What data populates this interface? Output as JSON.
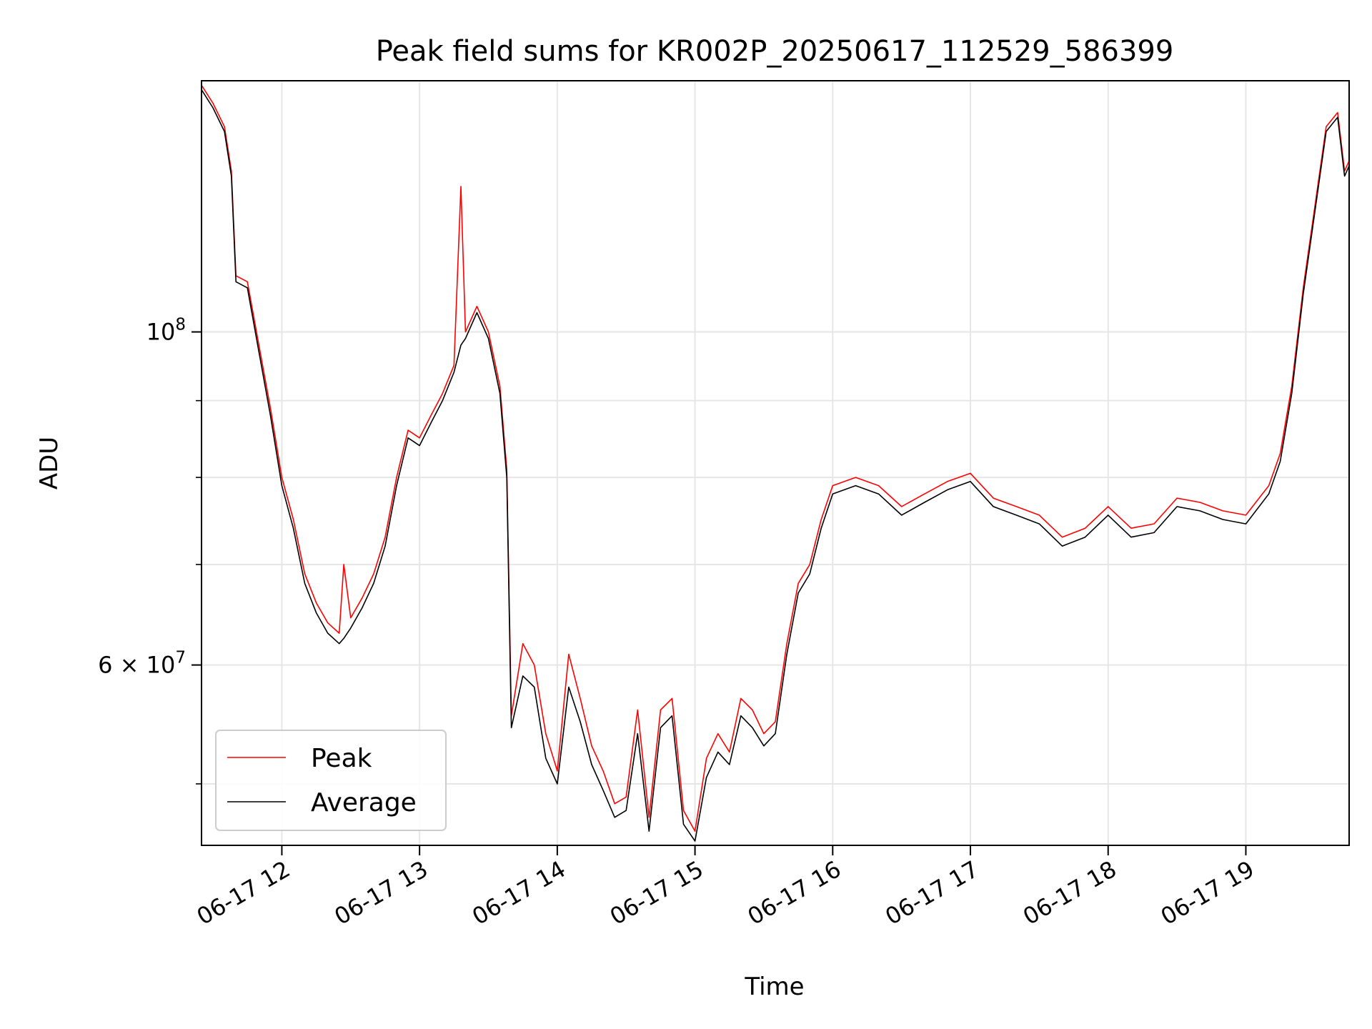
{
  "chart_data": {
    "type": "line",
    "title": "Peak field sums for KR002P_20250617_112529_586399",
    "xlabel": "Time",
    "ylabel": "ADU",
    "y_scale": "log",
    "grid": true,
    "legend_position": "lower-left",
    "xlim": [
      "2025-06-17 11:25",
      "2025-06-17 19:45"
    ],
    "ylim": [
      45500000,
      147000000
    ],
    "x_ticks": [
      {
        "value": "2025-06-17 12:00",
        "label": "06-17 12"
      },
      {
        "value": "2025-06-17 13:00",
        "label": "06-17 13"
      },
      {
        "value": "2025-06-17 14:00",
        "label": "06-17 14"
      },
      {
        "value": "2025-06-17 15:00",
        "label": "06-17 15"
      },
      {
        "value": "2025-06-17 16:00",
        "label": "06-17 16"
      },
      {
        "value": "2025-06-17 17:00",
        "label": "06-17 17"
      },
      {
        "value": "2025-06-17 18:00",
        "label": "06-17 18"
      },
      {
        "value": "2025-06-17 19:00",
        "label": "06-17 19"
      }
    ],
    "y_major_ticks": [
      {
        "value": 100000000,
        "base": "10",
        "exp": "8",
        "coef": ""
      },
      {
        "value": 60000000,
        "base": "10",
        "exp": "7",
        "coef": "6 × "
      }
    ],
    "y_minor_ticks": [
      50000000,
      70000000,
      80000000,
      90000000
    ],
    "series": [
      {
        "name": "Peak",
        "color": "#ff0000",
        "points": [
          [
            "2025-06-17 11:25",
            146000000
          ],
          [
            "2025-06-17 11:30",
            142000000
          ],
          [
            "2025-06-17 11:35",
            137000000
          ],
          [
            "2025-06-17 11:38",
            128000000
          ],
          [
            "2025-06-17 11:40",
            109000000
          ],
          [
            "2025-06-17 11:45",
            108000000
          ],
          [
            "2025-06-17 11:50",
            98000000
          ],
          [
            "2025-06-17 11:55",
            89000000
          ],
          [
            "2025-06-17 12:00",
            80000000
          ],
          [
            "2025-06-17 12:05",
            75000000
          ],
          [
            "2025-06-17 12:10",
            69000000
          ],
          [
            "2025-06-17 12:15",
            66000000
          ],
          [
            "2025-06-17 12:20",
            64000000
          ],
          [
            "2025-06-17 12:25",
            63000000
          ],
          [
            "2025-06-17 12:27",
            70000000
          ],
          [
            "2025-06-17 12:30",
            64500000
          ],
          [
            "2025-06-17 12:35",
            66500000
          ],
          [
            "2025-06-17 12:40",
            69000000
          ],
          [
            "2025-06-17 12:45",
            73000000
          ],
          [
            "2025-06-17 12:50",
            80000000
          ],
          [
            "2025-06-17 12:55",
            86000000
          ],
          [
            "2025-06-17 13:00",
            85000000
          ],
          [
            "2025-06-17 13:05",
            88000000
          ],
          [
            "2025-06-17 13:10",
            91000000
          ],
          [
            "2025-06-17 13:15",
            95000000
          ],
          [
            "2025-06-17 13:18",
            125000000
          ],
          [
            "2025-06-17 13:20",
            100000000
          ],
          [
            "2025-06-17 13:25",
            104000000
          ],
          [
            "2025-06-17 13:30",
            100000000
          ],
          [
            "2025-06-17 13:35",
            92000000
          ],
          [
            "2025-06-17 13:38",
            81000000
          ],
          [
            "2025-06-17 13:40",
            55500000
          ],
          [
            "2025-06-17 13:45",
            62000000
          ],
          [
            "2025-06-17 13:50",
            60000000
          ],
          [
            "2025-06-17 13:55",
            54000000
          ],
          [
            "2025-06-17 14:00",
            51000000
          ],
          [
            "2025-06-17 14:05",
            61000000
          ],
          [
            "2025-06-17 14:10",
            57000000
          ],
          [
            "2025-06-17 14:15",
            53000000
          ],
          [
            "2025-06-17 14:20",
            51000000
          ],
          [
            "2025-06-17 14:25",
            48500000
          ],
          [
            "2025-06-17 14:30",
            49000000
          ],
          [
            "2025-06-17 14:35",
            56000000
          ],
          [
            "2025-06-17 14:40",
            47500000
          ],
          [
            "2025-06-17 14:45",
            56000000
          ],
          [
            "2025-06-17 14:50",
            57000000
          ],
          [
            "2025-06-17 14:55",
            48000000
          ],
          [
            "2025-06-17 15:00",
            46500000
          ],
          [
            "2025-06-17 15:05",
            52000000
          ],
          [
            "2025-06-17 15:10",
            54000000
          ],
          [
            "2025-06-17 15:15",
            52500000
          ],
          [
            "2025-06-17 15:20",
            57000000
          ],
          [
            "2025-06-17 15:25",
            56000000
          ],
          [
            "2025-06-17 15:30",
            54000000
          ],
          [
            "2025-06-17 15:35",
            55000000
          ],
          [
            "2025-06-17 15:40",
            62000000
          ],
          [
            "2025-06-17 15:45",
            68000000
          ],
          [
            "2025-06-17 15:50",
            70000000
          ],
          [
            "2025-06-17 15:55",
            75000000
          ],
          [
            "2025-06-17 16:00",
            79000000
          ],
          [
            "2025-06-17 16:10",
            80000000
          ],
          [
            "2025-06-17 16:20",
            79000000
          ],
          [
            "2025-06-17 16:30",
            76500000
          ],
          [
            "2025-06-17 16:40",
            78000000
          ],
          [
            "2025-06-17 16:50",
            79500000
          ],
          [
            "2025-06-17 17:00",
            80500000
          ],
          [
            "2025-06-17 17:10",
            77500000
          ],
          [
            "2025-06-17 17:20",
            76500000
          ],
          [
            "2025-06-17 17:30",
            75500000
          ],
          [
            "2025-06-17 17:40",
            73000000
          ],
          [
            "2025-06-17 17:50",
            74000000
          ],
          [
            "2025-06-17 18:00",
            76500000
          ],
          [
            "2025-06-17 18:10",
            74000000
          ],
          [
            "2025-06-17 18:20",
            74500000
          ],
          [
            "2025-06-17 18:30",
            77500000
          ],
          [
            "2025-06-17 18:40",
            77000000
          ],
          [
            "2025-06-17 18:50",
            76000000
          ],
          [
            "2025-06-17 19:00",
            75500000
          ],
          [
            "2025-06-17 19:10",
            79000000
          ],
          [
            "2025-06-17 19:15",
            83000000
          ],
          [
            "2025-06-17 19:20",
            92000000
          ],
          [
            "2025-06-17 19:25",
            107000000
          ],
          [
            "2025-06-17 19:30",
            121000000
          ],
          [
            "2025-06-17 19:35",
            137000000
          ],
          [
            "2025-06-17 19:40",
            140000000
          ],
          [
            "2025-06-17 19:43",
            128000000
          ],
          [
            "2025-06-17 19:45",
            130000000
          ]
        ]
      },
      {
        "name": "Average",
        "color": "#000000",
        "points": [
          [
            "2025-06-17 11:25",
            145000000
          ],
          [
            "2025-06-17 11:30",
            141000000
          ],
          [
            "2025-06-17 11:35",
            136000000
          ],
          [
            "2025-06-17 11:38",
            127000000
          ],
          [
            "2025-06-17 11:40",
            108000000
          ],
          [
            "2025-06-17 11:45",
            107000000
          ],
          [
            "2025-06-17 11:50",
            97000000
          ],
          [
            "2025-06-17 11:55",
            88000000
          ],
          [
            "2025-06-17 12:00",
            79000000
          ],
          [
            "2025-06-17 12:05",
            74000000
          ],
          [
            "2025-06-17 12:10",
            68000000
          ],
          [
            "2025-06-17 12:15",
            65000000
          ],
          [
            "2025-06-17 12:20",
            63000000
          ],
          [
            "2025-06-17 12:25",
            62000000
          ],
          [
            "2025-06-17 12:27",
            62500000
          ],
          [
            "2025-06-17 12:30",
            63500000
          ],
          [
            "2025-06-17 12:35",
            65500000
          ],
          [
            "2025-06-17 12:40",
            68000000
          ],
          [
            "2025-06-17 12:45",
            72000000
          ],
          [
            "2025-06-17 12:50",
            79000000
          ],
          [
            "2025-06-17 12:55",
            85000000
          ],
          [
            "2025-06-17 13:00",
            84000000
          ],
          [
            "2025-06-17 13:05",
            87000000
          ],
          [
            "2025-06-17 13:10",
            90000000
          ],
          [
            "2025-06-17 13:15",
            94000000
          ],
          [
            "2025-06-17 13:18",
            98000000
          ],
          [
            "2025-06-17 13:20",
            99000000
          ],
          [
            "2025-06-17 13:25",
            103000000
          ],
          [
            "2025-06-17 13:30",
            99000000
          ],
          [
            "2025-06-17 13:35",
            91000000
          ],
          [
            "2025-06-17 13:38",
            80000000
          ],
          [
            "2025-06-17 13:40",
            54500000
          ],
          [
            "2025-06-17 13:45",
            59000000
          ],
          [
            "2025-06-17 13:50",
            58000000
          ],
          [
            "2025-06-17 13:55",
            52000000
          ],
          [
            "2025-06-17 14:00",
            50000000
          ],
          [
            "2025-06-17 14:05",
            58000000
          ],
          [
            "2025-06-17 14:10",
            55000000
          ],
          [
            "2025-06-17 14:15",
            51500000
          ],
          [
            "2025-06-17 14:20",
            49500000
          ],
          [
            "2025-06-17 14:25",
            47500000
          ],
          [
            "2025-06-17 14:30",
            48000000
          ],
          [
            "2025-06-17 14:35",
            54000000
          ],
          [
            "2025-06-17 14:40",
            46500000
          ],
          [
            "2025-06-17 14:45",
            54500000
          ],
          [
            "2025-06-17 14:50",
            55500000
          ],
          [
            "2025-06-17 14:55",
            47000000
          ],
          [
            "2025-06-17 15:00",
            45800000
          ],
          [
            "2025-06-17 15:05",
            50500000
          ],
          [
            "2025-06-17 15:10",
            52500000
          ],
          [
            "2025-06-17 15:15",
            51500000
          ],
          [
            "2025-06-17 15:20",
            55500000
          ],
          [
            "2025-06-17 15:25",
            54500000
          ],
          [
            "2025-06-17 15:30",
            53000000
          ],
          [
            "2025-06-17 15:35",
            54000000
          ],
          [
            "2025-06-17 15:40",
            61000000
          ],
          [
            "2025-06-17 15:45",
            67000000
          ],
          [
            "2025-06-17 15:50",
            69000000
          ],
          [
            "2025-06-17 15:55",
            74000000
          ],
          [
            "2025-06-17 16:00",
            78000000
          ],
          [
            "2025-06-17 16:10",
            79000000
          ],
          [
            "2025-06-17 16:20",
            78000000
          ],
          [
            "2025-06-17 16:30",
            75500000
          ],
          [
            "2025-06-17 16:40",
            77000000
          ],
          [
            "2025-06-17 16:50",
            78500000
          ],
          [
            "2025-06-17 17:00",
            79500000
          ],
          [
            "2025-06-17 17:10",
            76500000
          ],
          [
            "2025-06-17 17:20",
            75500000
          ],
          [
            "2025-06-17 17:30",
            74500000
          ],
          [
            "2025-06-17 17:40",
            72000000
          ],
          [
            "2025-06-17 17:50",
            73000000
          ],
          [
            "2025-06-17 18:00",
            75500000
          ],
          [
            "2025-06-17 18:10",
            73000000
          ],
          [
            "2025-06-17 18:20",
            73500000
          ],
          [
            "2025-06-17 18:30",
            76500000
          ],
          [
            "2025-06-17 18:40",
            76000000
          ],
          [
            "2025-06-17 18:50",
            75000000
          ],
          [
            "2025-06-17 19:00",
            74500000
          ],
          [
            "2025-06-17 19:10",
            78000000
          ],
          [
            "2025-06-17 19:15",
            82000000
          ],
          [
            "2025-06-17 19:20",
            91000000
          ],
          [
            "2025-06-17 19:25",
            106000000
          ],
          [
            "2025-06-17 19:30",
            120000000
          ],
          [
            "2025-06-17 19:35",
            136000000
          ],
          [
            "2025-06-17 19:40",
            139000000
          ],
          [
            "2025-06-17 19:43",
            127000000
          ],
          [
            "2025-06-17 19:45",
            129000000
          ]
        ]
      }
    ]
  }
}
